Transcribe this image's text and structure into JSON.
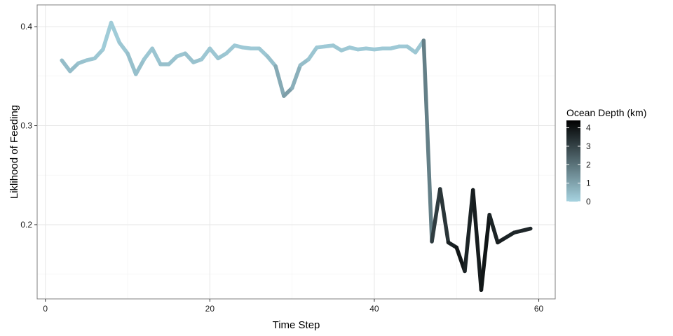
{
  "chart_data": {
    "type": "line",
    "xlabel": "Time Step",
    "ylabel": "Liklihood of Feeding",
    "xlim": [
      -1,
      62
    ],
    "ylim": [
      0.125,
      0.422
    ],
    "x_ticks": [
      0,
      20,
      40,
      60
    ],
    "y_ticks": [
      0.2,
      0.3,
      0.4
    ],
    "x_tick_labels": [
      "0",
      "20",
      "40",
      "60"
    ],
    "y_tick_labels": [
      "0.2",
      "0.3",
      "0.4"
    ],
    "grid": true,
    "legend": {
      "title": "Ocean Depth (km)",
      "placement": "right",
      "range": [
        0,
        4.4
      ],
      "ticks": [
        0,
        1,
        2,
        3,
        4
      ],
      "tick_labels": [
        "0",
        "1",
        "2",
        "3",
        "4"
      ],
      "color_low": "#a6d3e0",
      "color_high": "#000000"
    },
    "series": [
      {
        "x": [
          2,
          3,
          4,
          5,
          6,
          7,
          8,
          9,
          10,
          11,
          12,
          13,
          14,
          15,
          16,
          17,
          18,
          19,
          20,
          21,
          22,
          23,
          24,
          25,
          26,
          27,
          28,
          29,
          30,
          31,
          32,
          33,
          34,
          35,
          36,
          37,
          38,
          39,
          40,
          41,
          42,
          43,
          44,
          45,
          46,
          47,
          48,
          49,
          50,
          51,
          52,
          53,
          54,
          55,
          56,
          57,
          58,
          59
        ],
        "y": [
          0.366,
          0.355,
          0.363,
          0.366,
          0.368,
          0.377,
          0.404,
          0.384,
          0.373,
          0.352,
          0.367,
          0.378,
          0.362,
          0.362,
          0.37,
          0.373,
          0.364,
          0.367,
          0.378,
          0.368,
          0.373,
          0.381,
          0.379,
          0.378,
          0.378,
          0.37,
          0.36,
          0.33,
          0.338,
          0.361,
          0.367,
          0.379,
          0.38,
          0.381,
          0.376,
          0.379,
          0.377,
          0.378,
          0.377,
          0.378,
          0.378,
          0.38,
          0.38,
          0.374,
          0.386,
          0.183,
          0.236,
          0.182,
          0.177,
          0.153,
          0.235,
          0.134,
          0.21,
          0.182,
          0.187,
          0.192,
          0.194,
          0.196
        ],
        "depth": [
          0.4,
          0.5,
          0.4,
          0.3,
          0.3,
          0.2,
          0.1,
          0.2,
          0.3,
          0.5,
          0.3,
          0.2,
          0.4,
          0.4,
          0.3,
          0.3,
          0.4,
          0.3,
          0.2,
          0.3,
          0.3,
          0.2,
          0.2,
          0.2,
          0.2,
          0.3,
          0.5,
          1.2,
          1.0,
          0.5,
          0.4,
          0.2,
          0.2,
          0.2,
          0.3,
          0.2,
          0.2,
          0.2,
          0.2,
          0.2,
          0.2,
          0.2,
          0.2,
          0.3,
          0.2,
          3.3,
          3.0,
          3.6,
          3.8,
          4.1,
          3.2,
          4.4,
          3.5,
          3.8,
          3.7,
          3.6,
          3.6,
          3.6
        ]
      }
    ]
  }
}
